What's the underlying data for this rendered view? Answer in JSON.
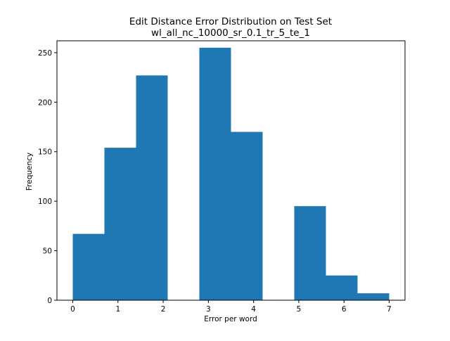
{
  "chart_data": {
    "type": "bar",
    "title": "Edit Distance Error Distribution on Test Set",
    "subtitle": "wl_all_nc_10000_sr_0.1_tr_5_te_1",
    "xlabel": "Error per word",
    "ylabel": "Frequency",
    "xlim": [
      -0.35,
      7.35
    ],
    "ylim": [
      0,
      262
    ],
    "xticks": [
      0,
      1,
      2,
      3,
      4,
      5,
      6,
      7
    ],
    "yticks": [
      0,
      50,
      100,
      150,
      200,
      250
    ],
    "bins": [
      {
        "x0": 0.0,
        "x1": 0.7,
        "value": 67
      },
      {
        "x0": 0.7,
        "x1": 1.4,
        "value": 154
      },
      {
        "x0": 1.4,
        "x1": 2.1,
        "value": 227
      },
      {
        "x0": 2.1,
        "x1": 2.8,
        "value": 0
      },
      {
        "x0": 2.8,
        "x1": 3.5,
        "value": 255
      },
      {
        "x0": 3.5,
        "x1": 4.2,
        "value": 170
      },
      {
        "x0": 4.2,
        "x1": 4.9,
        "value": 0
      },
      {
        "x0": 4.9,
        "x1": 5.6,
        "value": 95
      },
      {
        "x0": 5.6,
        "x1": 6.3,
        "value": 25
      },
      {
        "x0": 6.3,
        "x1": 7.0,
        "value": 7
      }
    ],
    "bar_color": "#1f77b4",
    "grid": false,
    "legend": "none"
  }
}
